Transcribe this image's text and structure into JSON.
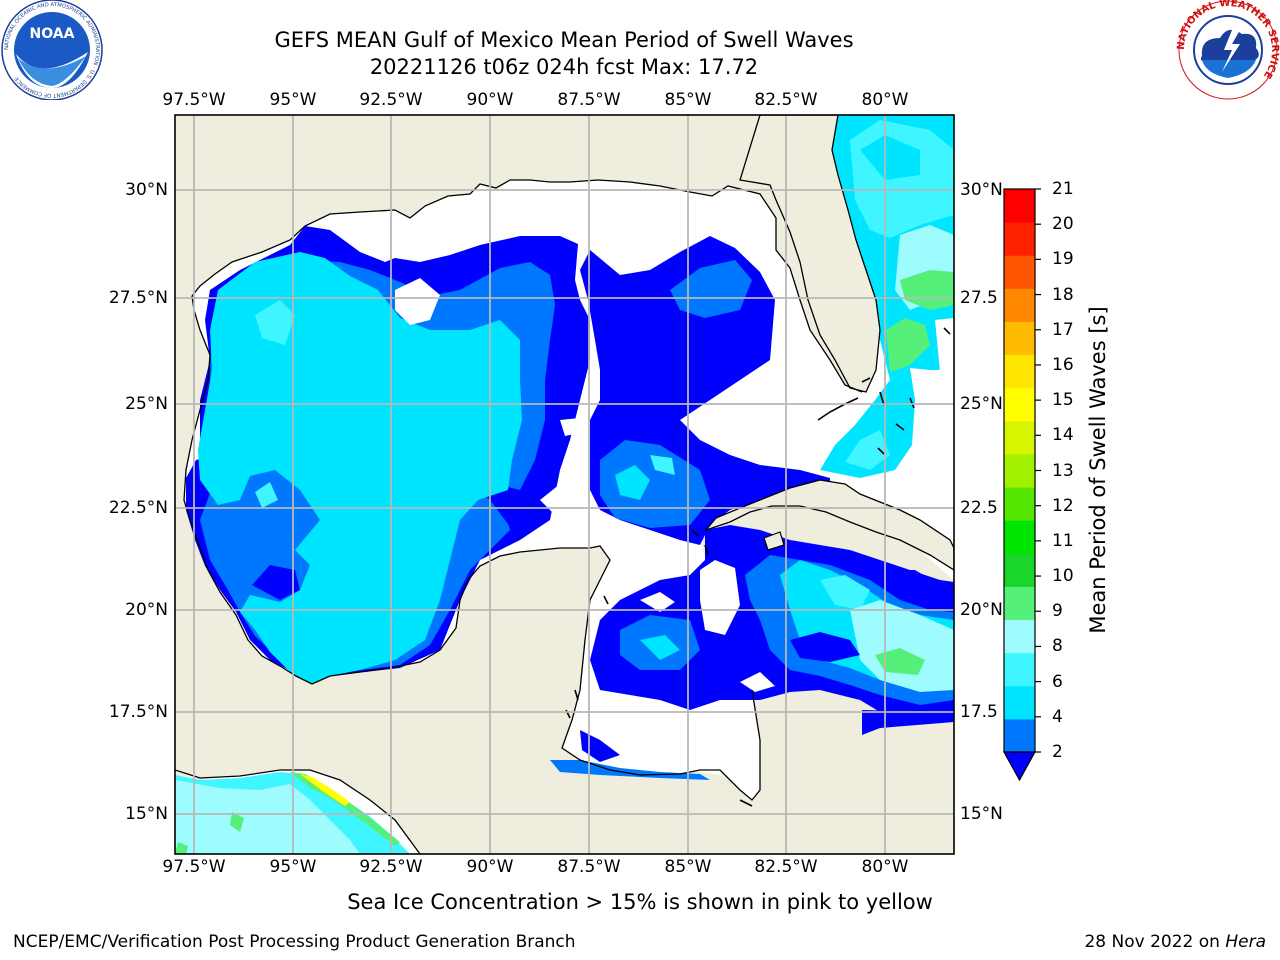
{
  "title": {
    "line1": "GEFS MEAN Gulf of Mexico Mean Period of Swell Waves",
    "line2": "20221126 t06z 024h fcst   Max: 17.72"
  },
  "map": {
    "lon_labels": [
      "97.5°W",
      "95°W",
      "92.5°W",
      "90°W",
      "87.5°W",
      "85°W",
      "82.5°W",
      "80°W"
    ],
    "lat_labels_left": [
      "30°N",
      "27.5°N",
      "25°N",
      "22.5°N",
      "20°N",
      "17.5°N",
      "15°N"
    ],
    "lat_labels_right": [
      "30°N",
      "27.5",
      "25°N",
      "22.5",
      "20°N",
      "17.5",
      "15°N"
    ],
    "colors": {
      "land": "#efedde",
      "no_data": "#ffffff",
      "grid": "#b8b8b8",
      "coast": "#000000"
    }
  },
  "colorbar": {
    "label": "Mean Period of Swell Waves [s]",
    "ticks": [
      "21",
      "20",
      "19",
      "18",
      "17",
      "16",
      "15",
      "14",
      "13",
      "12",
      "11",
      "10",
      "9",
      "8",
      "6",
      "4",
      "2"
    ],
    "colors": [
      "#0000ff",
      "#0077ff",
      "#00e5ff",
      "#3ff5ff",
      "#9efcff",
      "#55f07a",
      "#1bd62a",
      "#00e600",
      "#55e600",
      "#a0f000",
      "#d8f500",
      "#ffff00",
      "#ffe600",
      "#ffbb00",
      "#ff8800",
      "#ff5500",
      "#ff2200",
      "#ff0000"
    ]
  },
  "caption": "Sea Ice Concentration > 15% is shown in pink to yellow",
  "footer": {
    "left": "NCEP/EMC/Verification Post Processing Product Generation Branch",
    "right_date": "28 Nov 2022 on ",
    "right_host": "Hera"
  },
  "logos": {
    "noaa": "NOAA",
    "noaa_ring": "NATIONAL OCEANIC AND ATMOSPHERIC ADMINISTRATION · U.S. DEPARTMENT OF COMMERCE",
    "nws_ring": "NATIONAL WEATHER SERVICE"
  }
}
